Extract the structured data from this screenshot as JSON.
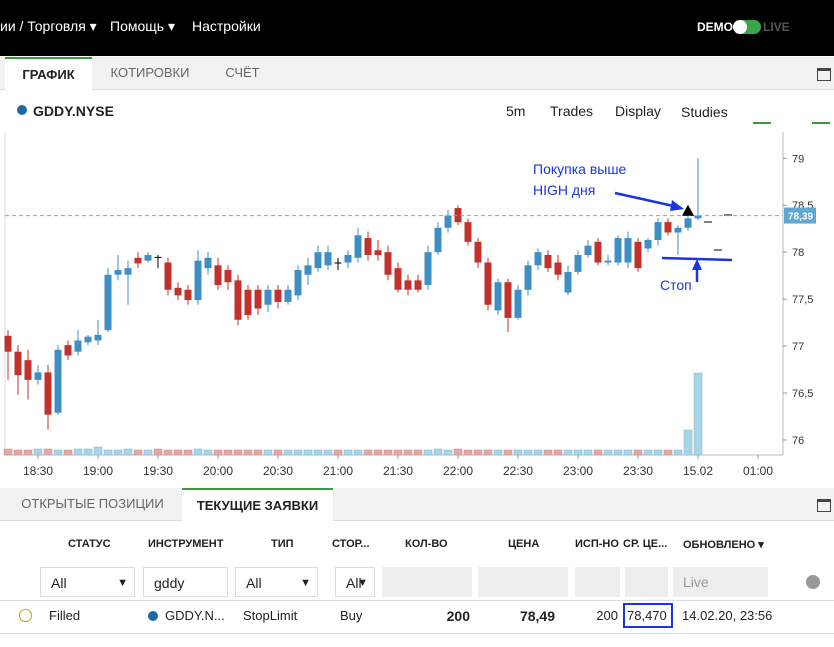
{
  "top_bar": {
    "menu": [
      "ии / Торговля ▾",
      "Помощь ▾",
      "Настройки"
    ],
    "demo": "DEMO",
    "live": "LIVE"
  },
  "tabs": [
    "ГРАФИК",
    "КОТИРОВКИ",
    "СЧЁТ"
  ],
  "chart_header": {
    "symbol": "GDDY.NYSE",
    "controls": [
      "5m",
      "Trades",
      "Display",
      "Studies"
    ]
  },
  "chart_data": {
    "type": "candlestick",
    "open": [
      77.11,
      76.94,
      76.85,
      76.64,
      76.72,
      76.29,
      77.01,
      76.94,
      77.04,
      77.06,
      77.17,
      77.76,
      77.76,
      77.94,
      77.91,
      77.95,
      77.89,
      77.62,
      77.6,
      77.49,
      77.83,
      77.86,
      77.81,
      77.7,
      77.6,
      77.6,
      77.44,
      77.6,
      77.47,
      77.54,
      77.76,
      77.83,
      77.86,
      77.89,
      77.89,
      77.94,
      78.15,
      78.02,
      78.0,
      77.83,
      77.7,
      77.7,
      77.65,
      78.0,
      78.26,
      78.47,
      78.32,
      78.11,
      77.89,
      77.38,
      77.68,
      77.3,
      77.6,
      77.86,
      77.97,
      77.89,
      77.57,
      77.79,
      77.97,
      78.11,
      77.89,
      77.89,
      77.89,
      78.11,
      78.04,
      78.13,
      78.32,
      78.21,
      78.26,
      78.36
    ],
    "high": [
      77.17,
      77.01,
      76.96,
      76.8,
      76.8,
      77.01,
      77.06,
      77.17,
      77.12,
      77.28,
      77.83,
      77.97,
      77.91,
      78.0,
      78.0,
      77.97,
      77.94,
      77.68,
      77.65,
      78.02,
      78.0,
      77.94,
      77.86,
      77.76,
      77.65,
      77.65,
      77.65,
      77.65,
      77.65,
      77.86,
      77.94,
      78.07,
      78.07,
      77.94,
      78.02,
      78.26,
      78.22,
      78.13,
      78.07,
      77.89,
      77.76,
      77.76,
      78.07,
      78.32,
      78.45,
      78.5,
      78.36,
      78.15,
      77.94,
      77.72,
      77.72,
      77.65,
      77.91,
      78.04,
      78.02,
      77.97,
      77.86,
      78.02,
      78.13,
      78.15,
      77.97,
      78.18,
      78.22,
      78.15,
      78.15,
      78.36,
      78.36,
      78.29,
      78.5,
      79.0
    ],
    "low": [
      76.64,
      76.48,
      76.43,
      76.59,
      76.11,
      76.27,
      76.85,
      76.9,
      77.01,
      77.01,
      77.15,
      77.7,
      77.44,
      77.83,
      77.89,
      77.83,
      77.54,
      77.49,
      77.44,
      77.44,
      77.76,
      77.6,
      77.6,
      77.22,
      77.28,
      77.33,
      77.36,
      77.4,
      77.44,
      77.49,
      77.65,
      77.79,
      77.81,
      77.81,
      77.83,
      77.89,
      77.91,
      77.91,
      77.7,
      77.57,
      77.54,
      77.57,
      77.6,
      77.97,
      78.21,
      78.29,
      78.07,
      77.83,
      77.38,
      77.33,
      77.15,
      77.28,
      77.54,
      77.81,
      77.79,
      77.7,
      77.54,
      77.76,
      77.94,
      77.86,
      77.86,
      77.86,
      77.83,
      77.79,
      78.0,
      78.07,
      78.18,
      77.97,
      78.23,
      78.34
    ],
    "close": [
      76.94,
      76.69,
      76.64,
      76.72,
      76.27,
      76.96,
      76.9,
      77.06,
      77.1,
      77.12,
      77.76,
      77.81,
      77.83,
      77.88,
      77.97,
      77.95,
      77.6,
      77.54,
      77.49,
      77.91,
      77.94,
      77.65,
      77.68,
      77.28,
      77.33,
      77.4,
      77.6,
      77.47,
      77.6,
      77.81,
      77.86,
      78.0,
      78.0,
      77.89,
      77.97,
      78.18,
      77.97,
      77.97,
      77.76,
      77.6,
      77.6,
      77.6,
      78.0,
      78.26,
      78.39,
      78.32,
      78.11,
      77.89,
      77.44,
      77.68,
      77.3,
      77.6,
      77.86,
      78.0,
      77.83,
      77.76,
      77.79,
      77.97,
      78.07,
      77.89,
      77.91,
      78.15,
      78.15,
      77.83,
      78.13,
      78.32,
      78.21,
      78.26,
      78.36,
      78.39
    ],
    "volume": [
      6,
      5,
      5,
      6,
      6,
      5,
      5,
      6,
      6,
      8,
      5,
      5,
      6,
      5,
      5,
      6,
      5,
      5,
      5,
      6,
      5,
      5,
      5,
      5,
      5,
      5,
      5,
      5,
      5,
      5,
      5,
      5,
      5,
      5,
      5,
      5,
      5,
      5,
      5,
      5,
      5,
      5,
      5,
      6,
      5,
      6,
      5,
      5,
      5,
      5,
      5,
      5,
      5,
      5,
      5,
      5,
      5,
      5,
      5,
      5,
      5,
      5,
      5,
      5,
      5,
      5,
      5,
      5,
      25,
      82
    ],
    "up_color": "#3f8fc4",
    "down_color": "#c2312c",
    "ylim": [
      75.84,
      79.28
    ],
    "yticks": [
      76,
      {
        "value": 76.5,
        "label": "76,5"
      },
      77,
      {
        "value": 77.5,
        "label": "77,5"
      },
      78,
      {
        "value": 78.5,
        "label": "78,5"
      },
      79
    ],
    "xlim": [
      -0.3,
      77.5
    ],
    "xticks": [
      {
        "value": 3,
        "label": "18:30"
      },
      {
        "value": 9,
        "label": "19:00"
      },
      {
        "value": 15,
        "label": "19:30"
      },
      {
        "value": 21,
        "label": "20:00"
      },
      {
        "value": 27,
        "label": "20:30"
      },
      {
        "value": 33,
        "label": "21:00"
      },
      {
        "value": 39,
        "label": "21:30"
      },
      {
        "value": 45,
        "label": "22:00"
      },
      {
        "value": 51,
        "label": "22:30"
      },
      {
        "value": 57,
        "label": "23:00"
      },
      {
        "value": 63,
        "label": "23:30"
      },
      {
        "value": 69,
        "label": "15.02"
      },
      {
        "value": 75,
        "label": "01:00"
      }
    ],
    "last_price": {
      "value": 78.39,
      "label": "78,39"
    },
    "buy_marker": {
      "x": 68,
      "y": 78.42
    },
    "annotations": [
      "Покупка выше",
      "HIGH дня",
      "Стоп"
    ]
  },
  "orders_tabs": [
    "ОТКРЫТЫЕ ПОЗИЦИИ",
    "ТЕКУЩИЕ ЗАЯВКИ"
  ],
  "orders": {
    "headers": [
      "СТАТУС",
      "ИНСТРУМЕНТ",
      "ТИП",
      "СТОР...",
      "КОЛ-ВО",
      "ЦЕНА",
      "ИСП-НО",
      "СР. ЦЕ...",
      "ОБНОВЛЕНО ▾"
    ],
    "filters": [
      "All",
      "gddy",
      "All",
      "All",
      "Live"
    ],
    "rows": [
      [
        "Filled",
        "GDDY.N...",
        "StopLimit",
        "Buy",
        "200",
        "78,49",
        "200",
        "78,470",
        "14.02.20, 23:56"
      ]
    ]
  }
}
